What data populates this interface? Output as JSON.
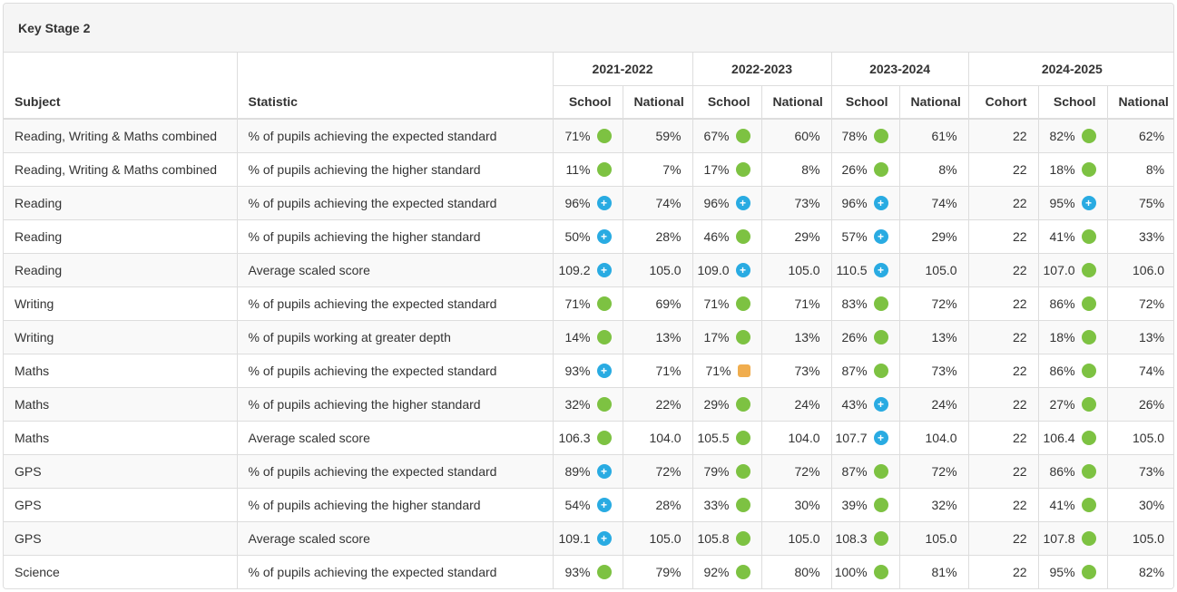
{
  "panel": {
    "title": "Key Stage 2"
  },
  "icon_styles": {
    "green": {
      "shape": "circle",
      "color": "#7dc242",
      "name": "green-dot-icon"
    },
    "blue-plus": {
      "shape": "circle-plus",
      "color": "#29abe2",
      "name": "blue-plus-icon",
      "glyph": "+"
    },
    "orange": {
      "shape": "square",
      "color": "#f0ad4e",
      "name": "orange-square-icon"
    }
  },
  "table": {
    "subject_header": "Subject",
    "statistic_header": "Statistic",
    "year_groups": [
      {
        "label": "2021-2022",
        "columns": [
          "School",
          "National"
        ]
      },
      {
        "label": "2022-2023",
        "columns": [
          "School",
          "National"
        ]
      },
      {
        "label": "2023-2024",
        "columns": [
          "School",
          "National"
        ]
      },
      {
        "label": "2024-2025",
        "columns": [
          "Cohort",
          "School",
          "National"
        ]
      }
    ],
    "rows": [
      {
        "subject": "Reading, Writing & Maths combined",
        "statistic": "% of pupils achieving the expected standard",
        "y2021_22": {
          "school": "71%",
          "school_icon": "green",
          "national": "59%"
        },
        "y2022_23": {
          "school": "67%",
          "school_icon": "green",
          "national": "60%"
        },
        "y2023_24": {
          "school": "78%",
          "school_icon": "green",
          "national": "61%"
        },
        "y2024_25": {
          "cohort": "22",
          "school": "82%",
          "school_icon": "green",
          "national": "62%"
        }
      },
      {
        "subject": "Reading, Writing & Maths combined",
        "statistic": "% of pupils achieving the higher standard",
        "y2021_22": {
          "school": "11%",
          "school_icon": "green",
          "national": "7%"
        },
        "y2022_23": {
          "school": "17%",
          "school_icon": "green",
          "national": "8%"
        },
        "y2023_24": {
          "school": "26%",
          "school_icon": "green",
          "national": "8%"
        },
        "y2024_25": {
          "cohort": "22",
          "school": "18%",
          "school_icon": "green",
          "national": "8%"
        }
      },
      {
        "subject": "Reading",
        "statistic": "% of pupils achieving the expected standard",
        "y2021_22": {
          "school": "96%",
          "school_icon": "blue-plus",
          "national": "74%"
        },
        "y2022_23": {
          "school": "96%",
          "school_icon": "blue-plus",
          "national": "73%"
        },
        "y2023_24": {
          "school": "96%",
          "school_icon": "blue-plus",
          "national": "74%"
        },
        "y2024_25": {
          "cohort": "22",
          "school": "95%",
          "school_icon": "blue-plus",
          "national": "75%"
        }
      },
      {
        "subject": "Reading",
        "statistic": "% of pupils achieving the higher standard",
        "y2021_22": {
          "school": "50%",
          "school_icon": "blue-plus",
          "national": "28%"
        },
        "y2022_23": {
          "school": "46%",
          "school_icon": "green",
          "national": "29%"
        },
        "y2023_24": {
          "school": "57%",
          "school_icon": "blue-plus",
          "national": "29%"
        },
        "y2024_25": {
          "cohort": "22",
          "school": "41%",
          "school_icon": "green",
          "national": "33%"
        }
      },
      {
        "subject": "Reading",
        "statistic": "Average scaled score",
        "y2021_22": {
          "school": "109.2",
          "school_icon": "blue-plus",
          "national": "105.0"
        },
        "y2022_23": {
          "school": "109.0",
          "school_icon": "blue-plus",
          "national": "105.0"
        },
        "y2023_24": {
          "school": "110.5",
          "school_icon": "blue-plus",
          "national": "105.0"
        },
        "y2024_25": {
          "cohort": "22",
          "school": "107.0",
          "school_icon": "green",
          "national": "106.0"
        }
      },
      {
        "subject": "Writing",
        "statistic": "% of pupils achieving the expected standard",
        "y2021_22": {
          "school": "71%",
          "school_icon": "green",
          "national": "69%"
        },
        "y2022_23": {
          "school": "71%",
          "school_icon": "green",
          "national": "71%"
        },
        "y2023_24": {
          "school": "83%",
          "school_icon": "green",
          "national": "72%"
        },
        "y2024_25": {
          "cohort": "22",
          "school": "86%",
          "school_icon": "green",
          "national": "72%"
        }
      },
      {
        "subject": "Writing",
        "statistic": "% of pupils working at greater depth",
        "y2021_22": {
          "school": "14%",
          "school_icon": "green",
          "national": "13%"
        },
        "y2022_23": {
          "school": "17%",
          "school_icon": "green",
          "national": "13%"
        },
        "y2023_24": {
          "school": "26%",
          "school_icon": "green",
          "national": "13%"
        },
        "y2024_25": {
          "cohort": "22",
          "school": "18%",
          "school_icon": "green",
          "national": "13%"
        }
      },
      {
        "subject": "Maths",
        "statistic": "% of pupils achieving the expected standard",
        "y2021_22": {
          "school": "93%",
          "school_icon": "blue-plus",
          "national": "71%"
        },
        "y2022_23": {
          "school": "71%",
          "school_icon": "orange",
          "national": "73%"
        },
        "y2023_24": {
          "school": "87%",
          "school_icon": "green",
          "national": "73%"
        },
        "y2024_25": {
          "cohort": "22",
          "school": "86%",
          "school_icon": "green",
          "national": "74%"
        }
      },
      {
        "subject": "Maths",
        "statistic": "% of pupils achieving the higher standard",
        "y2021_22": {
          "school": "32%",
          "school_icon": "green",
          "national": "22%"
        },
        "y2022_23": {
          "school": "29%",
          "school_icon": "green",
          "national": "24%"
        },
        "y2023_24": {
          "school": "43%",
          "school_icon": "blue-plus",
          "national": "24%"
        },
        "y2024_25": {
          "cohort": "22",
          "school": "27%",
          "school_icon": "green",
          "national": "26%"
        }
      },
      {
        "subject": "Maths",
        "statistic": "Average scaled score",
        "y2021_22": {
          "school": "106.3",
          "school_icon": "green",
          "national": "104.0"
        },
        "y2022_23": {
          "school": "105.5",
          "school_icon": "green",
          "national": "104.0"
        },
        "y2023_24": {
          "school": "107.7",
          "school_icon": "blue-plus",
          "national": "104.0"
        },
        "y2024_25": {
          "cohort": "22",
          "school": "106.4",
          "school_icon": "green",
          "national": "105.0"
        }
      },
      {
        "subject": "GPS",
        "statistic": "% of pupils achieving the expected standard",
        "y2021_22": {
          "school": "89%",
          "school_icon": "blue-plus",
          "national": "72%"
        },
        "y2022_23": {
          "school": "79%",
          "school_icon": "green",
          "national": "72%"
        },
        "y2023_24": {
          "school": "87%",
          "school_icon": "green",
          "national": "72%"
        },
        "y2024_25": {
          "cohort": "22",
          "school": "86%",
          "school_icon": "green",
          "national": "73%"
        }
      },
      {
        "subject": "GPS",
        "statistic": "% of pupils achieving the higher standard",
        "y2021_22": {
          "school": "54%",
          "school_icon": "blue-plus",
          "national": "28%"
        },
        "y2022_23": {
          "school": "33%",
          "school_icon": "green",
          "national": "30%"
        },
        "y2023_24": {
          "school": "39%",
          "school_icon": "green",
          "national": "32%"
        },
        "y2024_25": {
          "cohort": "22",
          "school": "41%",
          "school_icon": "green",
          "national": "30%"
        }
      },
      {
        "subject": "GPS",
        "statistic": "Average scaled score",
        "y2021_22": {
          "school": "109.1",
          "school_icon": "blue-plus",
          "national": "105.0"
        },
        "y2022_23": {
          "school": "105.8",
          "school_icon": "green",
          "national": "105.0"
        },
        "y2023_24": {
          "school": "108.3",
          "school_icon": "green",
          "national": "105.0"
        },
        "y2024_25": {
          "cohort": "22",
          "school": "107.8",
          "school_icon": "green",
          "national": "105.0"
        }
      },
      {
        "subject": "Science",
        "statistic": "% of pupils achieving the expected standard",
        "y2021_22": {
          "school": "93%",
          "school_icon": "green",
          "national": "79%"
        },
        "y2022_23": {
          "school": "92%",
          "school_icon": "green",
          "national": "80%"
        },
        "y2023_24": {
          "school": "100%",
          "school_icon": "green",
          "national": "81%"
        },
        "y2024_25": {
          "cohort": "22",
          "school": "95%",
          "school_icon": "green",
          "national": "82%"
        }
      }
    ]
  }
}
